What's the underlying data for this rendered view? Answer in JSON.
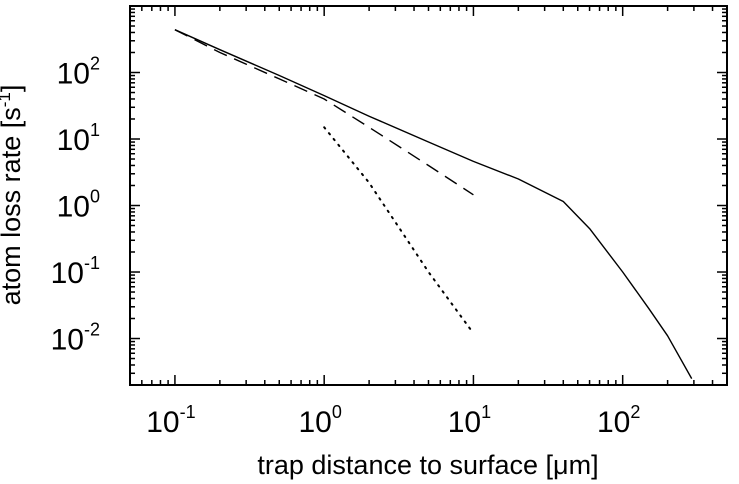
{
  "chart_data": {
    "type": "line",
    "title": "",
    "xlabel": "trap distance to surface [μm]",
    "ylabel_prefix": "atom loss rate  [s",
    "ylabel_exp": "-1",
    "ylabel_suffix": "]",
    "xscale": "log",
    "yscale": "log",
    "xlim": [
      0.05,
      500
    ],
    "ylim": [
      0.002,
      1000
    ],
    "legend": "none",
    "grid": false,
    "x_ticks": [
      {
        "base": "10",
        "exp": "-1",
        "value": 0.1
      },
      {
        "base": "10",
        "exp": "0",
        "value": 1
      },
      {
        "base": "10",
        "exp": "1",
        "value": 10
      },
      {
        "base": "10",
        "exp": "2",
        "value": 100
      }
    ],
    "y_ticks": [
      {
        "base": "10",
        "exp": "-2",
        "value": 0.01
      },
      {
        "base": "10",
        "exp": "-1",
        "value": 0.1
      },
      {
        "base": "10",
        "exp": "0",
        "value": 1
      },
      {
        "base": "10",
        "exp": "1",
        "value": 10
      },
      {
        "base": "10",
        "exp": "2",
        "value": 100
      }
    ],
    "series": [
      {
        "style": "solid",
        "x": [
          0.1,
          0.2,
          0.5,
          1,
          2,
          5,
          10,
          20,
          40,
          60,
          100,
          150,
          200,
          290
        ],
        "y": [
          440,
          220,
          90,
          45,
          22,
          9,
          4.6,
          2.5,
          1.15,
          0.45,
          0.1,
          0.028,
          0.011,
          0.0025
        ]
      },
      {
        "style": "dashed",
        "x": [
          0.1,
          0.2,
          0.5,
          1,
          2,
          5,
          10
        ],
        "y": [
          440,
          200,
          80,
          40,
          15,
          4,
          1.45
        ]
      },
      {
        "style": "dotted",
        "x": [
          1,
          2,
          5,
          10
        ],
        "y": [
          15,
          2.2,
          0.1,
          0.012
        ]
      }
    ]
  }
}
